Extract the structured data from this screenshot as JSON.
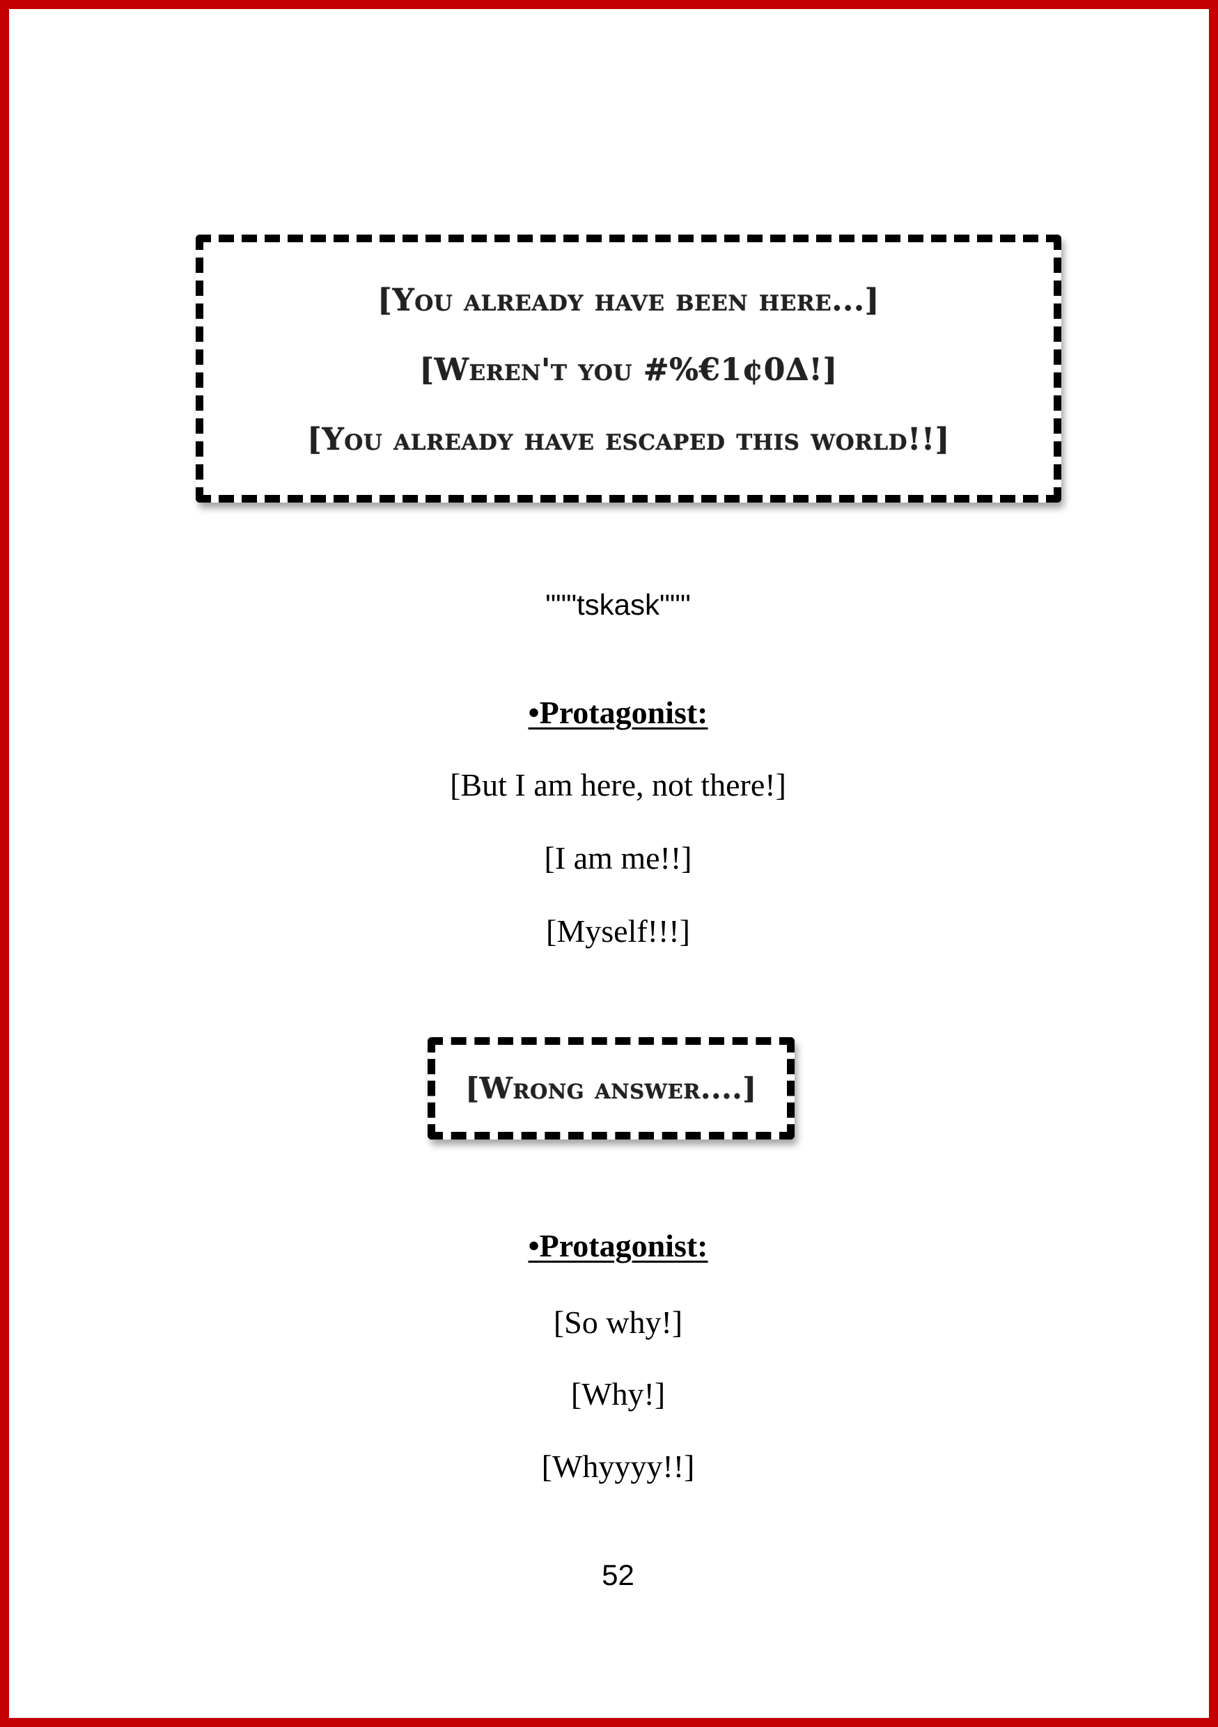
{
  "system_box_1": {
    "lines": [
      "[You already have been here...]",
      "[Weren't you #%€1¢0∆!]",
      "[You already have escaped this world!!]"
    ]
  },
  "sound_effect": "\"\"\"tskask\"\"\"",
  "dialogue_1": {
    "speaker": "•Protagonist:",
    "lines": [
      "[But I am here, not there!]",
      "[I am me!!]",
      "[Myself!!!]"
    ]
  },
  "system_box_2": {
    "lines": [
      "[Wrong answer....]"
    ]
  },
  "dialogue_2": {
    "speaker": "•Protagonist:",
    "lines": [
      "[So why!]",
      "[Why!]",
      "[Whyyyy!!]"
    ]
  },
  "page_number": "52",
  "colors": {
    "page_border": "#c40000",
    "text": "#000000",
    "system_text": "#222222"
  }
}
